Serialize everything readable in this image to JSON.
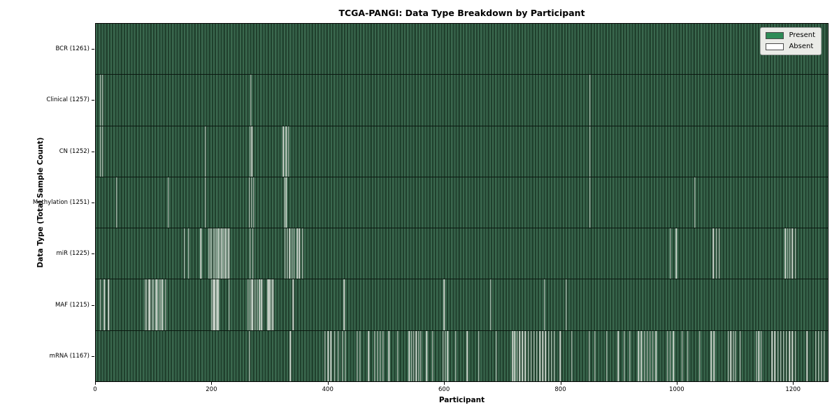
{
  "figure": {
    "title": "TCGA-PANGI: Data Type Breakdown by Participant",
    "xlabel": "Participant",
    "ylabel": "Data Type (Total Sample Count)"
  },
  "chart_data": {
    "type": "heatmap",
    "title": "TCGA-PANGI: Data Type Breakdown by Participant",
    "xlabel": "Participant",
    "ylabel": "Data Type (Total Sample Count)",
    "x_max": 1261,
    "x_ticks": [
      0,
      200,
      400,
      600,
      800,
      1000,
      1200
    ],
    "total_participants": 1261,
    "legend": [
      {
        "label": "Present",
        "color": "#2e8b57"
      },
      {
        "label": "Absent",
        "color": "#ffffff"
      }
    ],
    "colors": {
      "stripe_light": "#3a684e",
      "stripe_dark": "#20402d",
      "absent_line": "#ccd5cc",
      "row_separator": "#0a1810"
    },
    "rows": [
      {
        "key": "bcr",
        "data_type": "BCR",
        "total": 1261,
        "label": "BCR (1261)",
        "absent_approx": []
      },
      {
        "key": "clinical",
        "data_type": "Clinical",
        "total": 1257,
        "label": "Clinical (1257)",
        "absent_approx": [
          8,
          12,
          267,
          851
        ]
      },
      {
        "key": "cn",
        "data_type": "CN",
        "total": 1252,
        "label": "CN (1252)",
        "absent_approx": [
          8,
          12,
          189,
          266,
          269,
          323,
          328,
          332,
          851
        ]
      },
      {
        "key": "methylation",
        "data_type": "Methylation",
        "total": 1251,
        "label": "Methylation (1251)",
        "absent_approx": [
          36,
          125,
          189,
          265,
          268,
          272,
          325,
          328,
          851,
          1032
        ]
      },
      {
        "key": "mir",
        "data_type": "miR",
        "total": 1225,
        "label": "miR (1225)",
        "absent_approx": [
          153,
          160,
          181,
          195,
          197,
          200,
          203,
          206,
          208,
          211,
          214,
          217,
          220,
          223,
          226,
          229,
          266,
          271,
          326,
          330,
          334,
          338,
          342,
          347,
          351,
          356,
          990,
          1000,
          1064,
          1069,
          1074,
          1188,
          1192,
          1196,
          1200,
          1205
        ]
      },
      {
        "key": "maf",
        "data_type": "MAF",
        "total": 1215,
        "label": "MAF (1215)",
        "absent_approx": [
          8,
          15,
          22,
          85,
          88,
          91,
          92,
          94,
          97,
          100,
          103,
          105,
          106,
          109,
          112,
          115,
          120,
          200,
          202,
          203,
          204,
          206,
          208,
          210,
          212,
          230,
          262,
          266,
          268,
          270,
          274,
          278,
          282,
          286,
          296,
          298,
          299,
          300,
          302,
          305,
          340,
          428,
          600,
          680,
          773,
          810
        ]
      },
      {
        "key": "mrna",
        "data_type": "mRNA",
        "total": 1167,
        "label": "mRNA (1167)",
        "absent_approx": [
          265,
          335,
          395,
          400,
          405,
          412,
          418,
          425,
          430,
          450,
          455,
          470,
          480,
          485,
          490,
          495,
          505,
          520,
          540,
          544,
          548,
          552,
          556,
          560,
          570,
          580,
          598,
          602,
          606,
          620,
          640,
          660,
          690,
          718,
          722,
          726,
          730,
          735,
          740,
          745,
          750,
          755,
          760,
          765,
          770,
          775,
          780,
          785,
          790,
          800,
          820,
          850,
          860,
          880,
          900,
          910,
          920,
          935,
          940,
          945,
          950,
          955,
          960,
          965,
          985,
          990,
          995,
          1010,
          1020,
          1040,
          1060,
          1065,
          1090,
          1094,
          1098,
          1102,
          1110,
          1138,
          1142,
          1146,
          1165,
          1170,
          1175,
          1180,
          1185,
          1190,
          1195,
          1200,
          1205,
          1225,
          1240,
          1245,
          1250,
          1255
        ]
      }
    ]
  }
}
